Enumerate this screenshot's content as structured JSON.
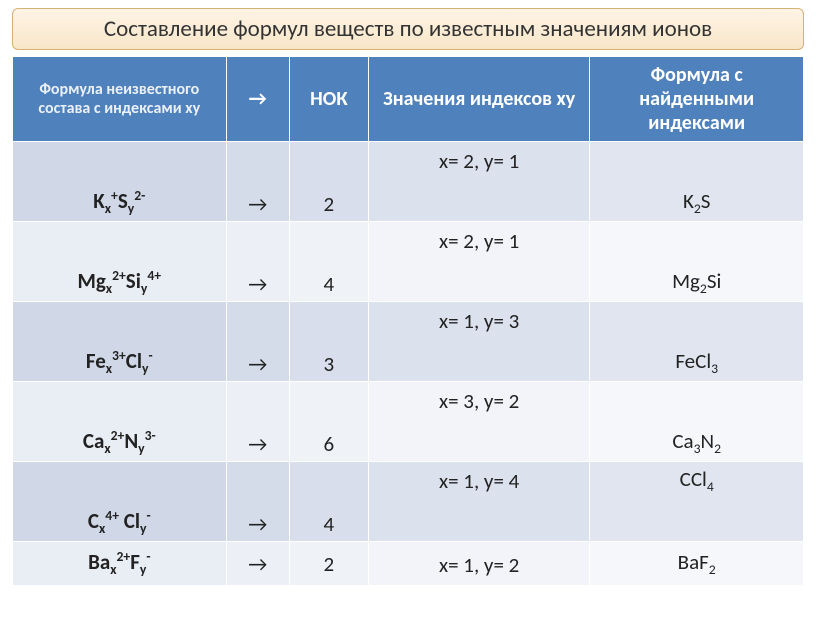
{
  "title": "Составление формул веществ по известным значениям ионов",
  "headers": {
    "formula_unknown": "Формула неизвестного состава с индексами xy",
    "arrow": "→",
    "nok": "НОК",
    "indices": "Значения индексов xy",
    "result": "Формула с найденными индексами"
  },
  "rows": [
    {
      "unknown_html": "K<sub>x</sub><sup>+</sup>S<sub>y</sub><sup>2-</sup>",
      "arrow": "→",
      "nok": "2",
      "indices": "x= 2, y= 1",
      "result_html": "K<sub>2</sub>S",
      "band": "A"
    },
    {
      "unknown_html": "Mg<sub>x</sub><sup>2+</sup>Si<sub>y</sub><sup>4+</sup>",
      "arrow": "→",
      "nok": "4",
      "indices": "x= 2, y= 1",
      "result_html": "Mg<sub>2</sub>Si",
      "band": "B"
    },
    {
      "unknown_html": "Fe<sub>x</sub><sup>3+</sup>Cl<sub>y</sub><sup>-</sup>",
      "arrow": "→",
      "nok": "3",
      "indices": "x= 1, y= 3",
      "result_html": "FeCl<sub>3</sub>",
      "band": "A"
    },
    {
      "unknown_html": "Ca<sub>x</sub><sup>2+</sup>N<sub>y</sub><sup>3-</sup>",
      "arrow": "→",
      "nok": "6",
      "indices": "x= 3, y= 2",
      "result_html": "Ca<sub>3</sub>N<sub>2</sub>",
      "band": "B"
    },
    {
      "unknown_html": "C<sub>x</sub><sup>4+</sup> Cl<sub>y</sub><sup>-</sup>",
      "arrow": "→",
      "nok": "4",
      "indices": "x= 1, y= 4",
      "result_html": "CCl<sub>4</sub>",
      "band": "A",
      "result_valign": "top"
    },
    {
      "unknown_html": "Ba<sub>x</sub><sup>2+</sup>F<sub>y</sub><sup>-</sup>",
      "arrow": "→",
      "nok": "2",
      "indices": "x= 1, y= 2",
      "result_html": "BaF<sub>2</sub>",
      "band": "B",
      "last": true
    }
  ],
  "style": {
    "header_bg": "#4f81bd",
    "bandA_colors": [
      "#d0d8e8",
      "#d4dbe9",
      "#d8deeb",
      "#dce2ed",
      "#e0e5ef"
    ],
    "bandB_colors": [
      "#e9edf4",
      "#ecf0f6",
      "#eff2f7",
      "#f2f4f9",
      "#f5f7fa"
    ],
    "title_bg_top": "#fef4e6",
    "title_bg_bottom": "#f8e6c8",
    "title_border": "#d8b078",
    "font": "Calibri",
    "title_fontsize": 23,
    "header_fontsize": 20,
    "header_small_fontsize": 16,
    "cell_fontsize": 21,
    "col_widths_pct": [
      27,
      8,
      10,
      28,
      27
    ]
  }
}
